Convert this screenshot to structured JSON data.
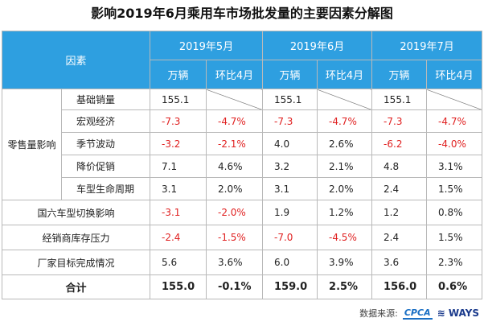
{
  "title": "影响2019年6月乘用车市场批发量的主要因素分解图",
  "header": {
    "factor_label": "因素",
    "months": [
      "2019年5月",
      "2019年6月",
      "2019年7月"
    ],
    "unit_label": "万辆",
    "mom_label": "环比4月"
  },
  "group_label": "零售量影响",
  "rows": [
    {
      "label": "基础销量",
      "values": [
        "155.1",
        "",
        "155.1",
        "",
        "155.1",
        ""
      ]
    },
    {
      "label": "宏观经济",
      "values": [
        "-7.3",
        "-4.7%",
        "-7.3",
        "-4.7%",
        "-7.3",
        "-4.7%"
      ]
    },
    {
      "label": "季节波动",
      "values": [
        "-3.2",
        "-2.1%",
        "4.0",
        "2.6%",
        "-6.2",
        "-4.0%"
      ]
    },
    {
      "label": "降价促销",
      "values": [
        "7.1",
        "4.6%",
        "3.2",
        "2.1%",
        "4.8",
        "3.1%"
      ]
    },
    {
      "label": "车型生命周期",
      "values": [
        "3.1",
        "2.0%",
        "3.1",
        "2.0%",
        "2.4",
        "1.5%"
      ]
    },
    {
      "label": "国六车型切换影响",
      "values": [
        "-3.1",
        "-2.0%",
        "1.9",
        "1.2%",
        "1.2",
        "0.8%"
      ]
    },
    {
      "label": "经销商库存压力",
      "values": [
        "-2.4",
        "-1.5%",
        "-7.0",
        "-4.5%",
        "2.4",
        "1.5%"
      ]
    },
    {
      "label": "厂家目标完成情况",
      "values": [
        "5.6",
        "3.6%",
        "6.0",
        "3.9%",
        "3.6",
        "2.3%"
      ]
    }
  ],
  "total": {
    "label": "合计",
    "values": [
      "155.0",
      "-0.1%",
      "159.0",
      "2.5%",
      "156.0",
      "0.6%"
    ]
  },
  "footer": {
    "source_label": "数据来源:",
    "logo1": "CPCA",
    "logo2": "WAYS"
  },
  "colors": {
    "header_bg": "#2e9fe0",
    "negative": "#e02020"
  }
}
